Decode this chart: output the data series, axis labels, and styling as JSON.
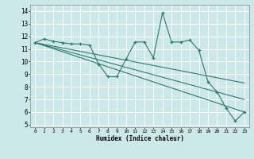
{
  "title": "",
  "xlabel": "Humidex (Indice chaleur)",
  "bg_color": "#cce8e8",
  "grid_color": "#ffffff",
  "line_color": "#2d7a6e",
  "xlim": [
    -0.5,
    23.5
  ],
  "ylim": [
    4.8,
    14.5
  ],
  "yticks": [
    5,
    6,
    7,
    8,
    9,
    10,
    11,
    12,
    13,
    14
  ],
  "xtick_labels": [
    "0",
    "1",
    "2",
    "3",
    "4",
    "5",
    "6",
    "7",
    "8",
    "9",
    "10",
    "11",
    "12",
    "13",
    "14",
    "15",
    "16",
    "17",
    "18",
    "19",
    "20",
    "21",
    "22",
    "23"
  ],
  "main_series_x": [
    0,
    1,
    2,
    3,
    4,
    5,
    6,
    7,
    8,
    9,
    10,
    11,
    12,
    13,
    14,
    15,
    16,
    17,
    18,
    19,
    20,
    21,
    22,
    23
  ],
  "main_series_y": [
    11.5,
    11.8,
    11.6,
    11.5,
    11.4,
    11.4,
    11.3,
    9.8,
    8.8,
    8.8,
    10.2,
    11.55,
    11.55,
    10.3,
    13.85,
    11.55,
    11.55,
    11.7,
    10.9,
    8.4,
    7.6,
    6.3,
    5.3,
    6.0
  ],
  "linear_series": [
    {
      "x": [
        0,
        23
      ],
      "y": [
        11.5,
        8.3
      ]
    },
    {
      "x": [
        0,
        23
      ],
      "y": [
        11.5,
        7.0
      ]
    },
    {
      "x": [
        0,
        23
      ],
      "y": [
        11.5,
        6.0
      ]
    }
  ]
}
